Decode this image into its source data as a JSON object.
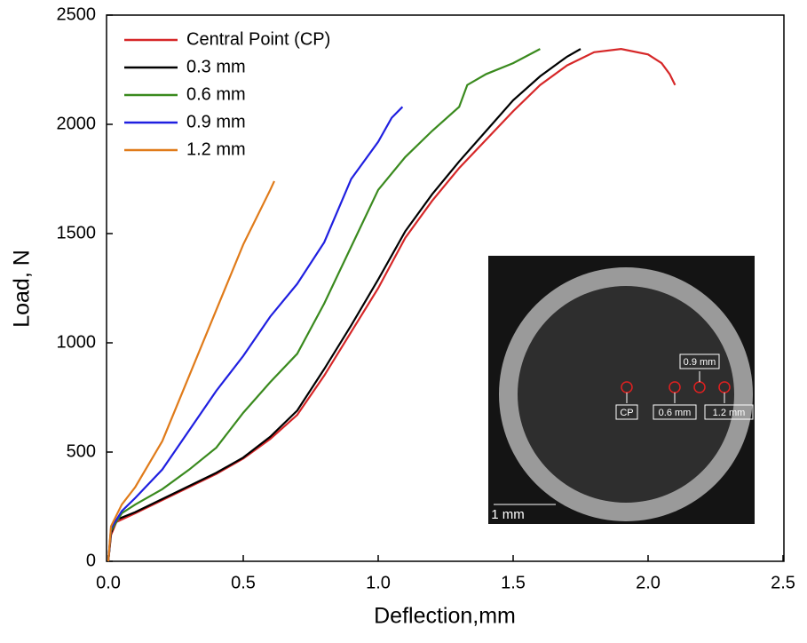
{
  "chart_data": {
    "type": "line",
    "x_label": "Deflection,mm",
    "y_label": "Load, N",
    "xlim": [
      0,
      2.5
    ],
    "ylim": [
      0,
      2500
    ],
    "xticks": [
      {
        "value": 0,
        "label": "0.0"
      },
      0.5,
      {
        "value": 1,
        "label": "1.0"
      },
      1.5,
      {
        "value": 2,
        "label": "2.0"
      },
      2.5
    ],
    "yticks": [
      0,
      500,
      1000,
      1500,
      2000,
      2500
    ],
    "legend": "upper-left",
    "series": [
      {
        "name": "Central Point (CP)",
        "color": "#d62728",
        "x": [
          0,
          0.01,
          0.03,
          0.1,
          0.2,
          0.3,
          0.4,
          0.5,
          0.6,
          0.7,
          0.8,
          0.9,
          1.0,
          1.1,
          1.2,
          1.3,
          1.4,
          1.5,
          1.6,
          1.7,
          1.8,
          1.9,
          2.0,
          2.05,
          2.08,
          2.1
        ],
        "values": [
          0,
          120,
          180,
          220,
          280,
          340,
          400,
          470,
          560,
          670,
          850,
          1050,
          1250,
          1480,
          1650,
          1800,
          1930,
          2060,
          2180,
          2270,
          2330,
          2345,
          2320,
          2280,
          2230,
          2180
        ]
      },
      {
        "name": "0.3 mm",
        "color": "#000000",
        "x": [
          0,
          0.01,
          0.03,
          0.1,
          0.2,
          0.3,
          0.4,
          0.5,
          0.6,
          0.7,
          0.8,
          0.9,
          1.0,
          1.1,
          1.2,
          1.3,
          1.4,
          1.5,
          1.6,
          1.7,
          1.75
        ],
        "values": [
          0,
          130,
          190,
          225,
          285,
          345,
          405,
          475,
          570,
          690,
          880,
          1080,
          1290,
          1510,
          1680,
          1830,
          1970,
          2110,
          2220,
          2310,
          2345
        ]
      },
      {
        "name": "0.6 mm",
        "color": "#3a8a1e",
        "x": [
          0,
          0.01,
          0.05,
          0.1,
          0.2,
          0.3,
          0.4,
          0.5,
          0.6,
          0.7,
          0.8,
          0.9,
          1.0,
          1.1,
          1.2,
          1.3,
          1.33,
          1.4,
          1.5,
          1.6
        ],
        "values": [
          0,
          140,
          220,
          260,
          330,
          420,
          520,
          680,
          820,
          950,
          1180,
          1440,
          1700,
          1850,
          1970,
          2080,
          2180,
          2230,
          2280,
          2345
        ]
      },
      {
        "name": "0.9 mm",
        "color": "#1f1fe0",
        "x": [
          0,
          0.01,
          0.05,
          0.1,
          0.2,
          0.3,
          0.4,
          0.5,
          0.6,
          0.7,
          0.8,
          0.9,
          1.0,
          1.05,
          1.09
        ],
        "values": [
          0,
          150,
          230,
          290,
          420,
          600,
          780,
          940,
          1120,
          1270,
          1460,
          1750,
          1920,
          2030,
          2080
        ]
      },
      {
        "name": "1.2 mm",
        "color": "#e07b1a",
        "x": [
          0,
          0.01,
          0.05,
          0.1,
          0.2,
          0.3,
          0.4,
          0.5,
          0.6,
          0.615
        ],
        "values": [
          0,
          160,
          260,
          340,
          550,
          850,
          1150,
          1450,
          1700,
          1740
        ]
      }
    ],
    "inset": {
      "labels": [
        "0.9 mm",
        "CP",
        "0.6 mm",
        "1.2 mm"
      ],
      "scale_bar": "1 mm"
    }
  }
}
